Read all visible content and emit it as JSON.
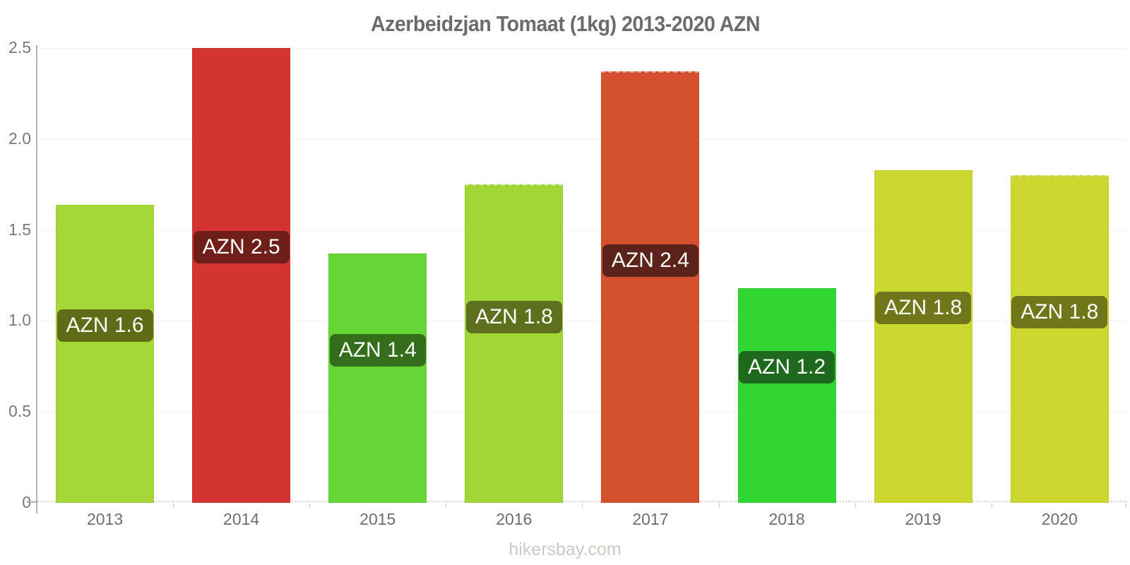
{
  "chart_data": {
    "type": "bar",
    "title": "Azerbeidzjan Tomaat (1kg) 2013-2020 AZN",
    "currency": "AZN",
    "categories": [
      "2013",
      "2014",
      "2015",
      "2016",
      "2017",
      "2018",
      "2019",
      "2020"
    ],
    "values": [
      1.64,
      2.5,
      1.37,
      1.75,
      2.37,
      1.18,
      1.83,
      1.8
    ],
    "bar_labels": [
      "AZN 1.6",
      "AZN 2.5",
      "AZN 1.4",
      "AZN 1.8",
      "AZN 2.4",
      "AZN 1.2",
      "AZN 1.8",
      "AZN 1.8"
    ],
    "bar_colors": [
      "#a6d739",
      "#d3342f",
      "#66d636",
      "#a0d636",
      "#d5502f",
      "#32d633",
      "#ccd82f",
      "#ccd82f"
    ],
    "label_bg_colors": [
      "#5f6b15",
      "#6e1f1a",
      "#356e1b",
      "#5e701d",
      "#5c231a",
      "#1e691e",
      "#70771b",
      "#70771b"
    ],
    "top_dashed": [
      false,
      false,
      false,
      true,
      true,
      false,
      false,
      true
    ],
    "xlabel": "",
    "ylabel": "",
    "ylim": [
      0,
      2.5
    ],
    "yticks": [
      0,
      0.5,
      1,
      1.5,
      2,
      2.5
    ],
    "ytick_labels": [
      "0",
      "0.5",
      "1.0",
      "1.5",
      "2.0",
      "2.5"
    ],
    "grid": true,
    "legend": false
  },
  "footer": {
    "watermark": "hikersbay.com"
  },
  "layout_colors": {
    "title": "#6b6b6b",
    "axis_line": "#b5b1ac",
    "tick_label": "#787878",
    "gridline": "#f2f2f2",
    "baseline": "#cfcfcf",
    "watermark": "#ccc9c6",
    "value_text": "#ffffff"
  }
}
